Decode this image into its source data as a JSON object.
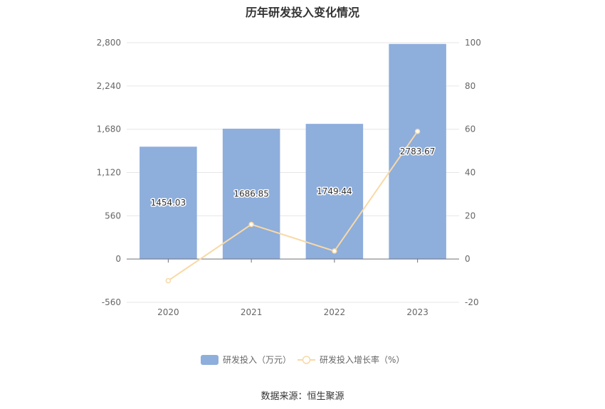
{
  "chart_data": {
    "type": "bar",
    "title": "历年研发投入变化情况",
    "categories": [
      "2020",
      "2021",
      "2022",
      "2023"
    ],
    "series": [
      {
        "name": "研发投入（万元）",
        "type": "bar",
        "axis": "left",
        "values": [
          1454.03,
          1686.85,
          1749.44,
          2783.67
        ],
        "value_labels": [
          "1454.03",
          "1686.85",
          "1749.44",
          "2783.67"
        ],
        "color": "#8eaedc"
      },
      {
        "name": "研发投入增长率（%）",
        "type": "line",
        "axis": "right",
        "values": [
          -10,
          16,
          3.7,
          59
        ],
        "color": "#f9d9a5"
      }
    ],
    "y_left": {
      "min": -560,
      "max": 2800,
      "ticks": [
        -560,
        0,
        560,
        1120,
        1680,
        2240,
        2800
      ],
      "tick_labels": [
        "-560",
        "0",
        "560",
        "1,120",
        "1,680",
        "2,240",
        "2,800"
      ]
    },
    "y_right": {
      "min": -20,
      "max": 100,
      "ticks": [
        -20,
        0,
        20,
        40,
        60,
        80,
        100
      ],
      "tick_labels": [
        "-20",
        "0",
        "20",
        "40",
        "60",
        "80",
        "100"
      ]
    },
    "grid": true,
    "legend": "bottom-center"
  },
  "source_text": "数据来源：恒生聚源"
}
